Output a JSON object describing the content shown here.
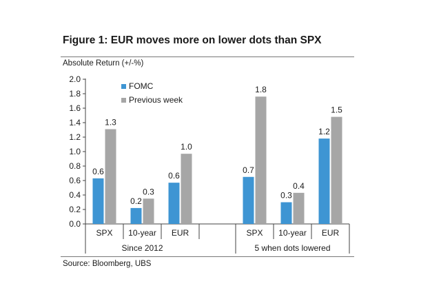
{
  "page": {
    "title": "Figure 1: EUR moves more on lower dots than SPX",
    "y_axis_title": "Absolute Return (+/-%)",
    "source": "Source: Bloomberg, UBS"
  },
  "colors": {
    "fomc": "#3e95d3",
    "previous_week": "#a6a6a6"
  },
  "chart_data": {
    "type": "bar",
    "ylim": [
      0,
      2.0
    ],
    "y_ticks": [
      "0.0",
      "0.2",
      "0.4",
      "0.6",
      "0.8",
      "1.0",
      "1.2",
      "1.4",
      "1.6",
      "1.8",
      "2.0"
    ],
    "ylabel": "Absolute Return (+/-%)",
    "xlabel": "",
    "grid": false,
    "legend_position": "top-left",
    "groups": [
      {
        "label": "Since 2012",
        "categories": [
          "SPX",
          "10-year",
          "EUR"
        ]
      },
      {
        "label": "5 when dots lowered",
        "categories": [
          "SPX",
          "10-year",
          "EUR"
        ]
      }
    ],
    "categories": [
      "SPX",
      "10-year",
      "EUR",
      "SPX",
      "10-year",
      "EUR"
    ],
    "series": [
      {
        "name": "FOMC",
        "color": "#3e95d3",
        "values": [
          0.63,
          0.22,
          0.57,
          0.65,
          0.3,
          1.18
        ],
        "data_labels": [
          "0.6",
          "0.2",
          "0.6",
          "0.7",
          "0.3",
          "1.2"
        ]
      },
      {
        "name": "Previous week",
        "color": "#a6a6a6",
        "values": [
          1.31,
          0.35,
          0.97,
          1.76,
          0.43,
          1.48
        ],
        "data_labels": [
          "1.3",
          "0.3",
          "1.0",
          "1.8",
          "0.4",
          "1.5"
        ]
      }
    ]
  }
}
